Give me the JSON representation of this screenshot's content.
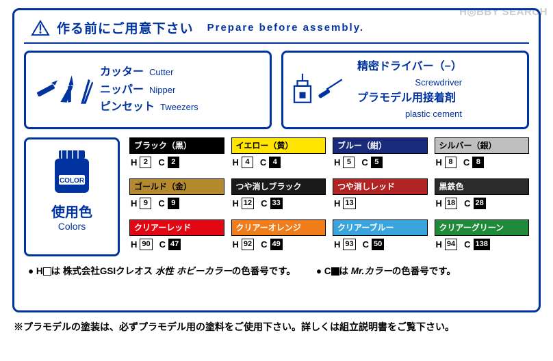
{
  "header": {
    "jp": "作る前にご用意下さい",
    "en": "Prepare before assembly."
  },
  "tools": {
    "left": [
      {
        "jp": "カッター",
        "en": "Cutter"
      },
      {
        "jp": "ニッパー",
        "en": "Nipper"
      },
      {
        "jp": "ピンセット",
        "en": "Tweezers"
      }
    ],
    "right": [
      {
        "jp": "精密ドライバー（−）",
        "en": "Screwdriver"
      },
      {
        "jp": "プラモデル用接着剤",
        "en": "plastic cement"
      }
    ]
  },
  "colors_label": {
    "jp": "使用色",
    "en": "Colors",
    "jar_label": "COLOR"
  },
  "colors": [
    {
      "name": "ブラック（黒）",
      "bg": "#000000",
      "text": "light",
      "h": "2",
      "c": "2"
    },
    {
      "name": "イエロー（黄）",
      "bg": "#ffe500",
      "text": "dark",
      "h": "4",
      "c": "4"
    },
    {
      "name": "ブルー（紺）",
      "bg": "#1a2a7a",
      "text": "light",
      "h": "5",
      "c": "5"
    },
    {
      "name": "シルバー（銀）",
      "bg": "#bfbfbf",
      "text": "dark",
      "h": "8",
      "c": "8"
    },
    {
      "name": "ゴールド（金）",
      "bg": "#b58a2e",
      "text": "dark",
      "h": "9",
      "c": "9"
    },
    {
      "name": "つや消しブラック",
      "bg": "#1a1a1a",
      "text": "light",
      "h": "12",
      "c": "33"
    },
    {
      "name": "つや消しレッド",
      "bg": "#b22424",
      "text": "light",
      "h": "13",
      "c": ""
    },
    {
      "name": "黒鉄色",
      "bg": "#2b2b2b",
      "text": "light",
      "h": "18",
      "c": "28"
    },
    {
      "name": "クリアーレッド",
      "bg": "#e30613",
      "text": "light",
      "h": "90",
      "c": "47"
    },
    {
      "name": "クリアーオレンジ",
      "bg": "#f07d1a",
      "text": "light",
      "h": "92",
      "c": "49"
    },
    {
      "name": "クリアーブルー",
      "bg": "#3aa5dc",
      "text": "light",
      "h": "93",
      "c": "50"
    },
    {
      "name": "クリアーグリーン",
      "bg": "#1e8a3a",
      "text": "light",
      "h": "94",
      "c": "138"
    }
  ],
  "legend": {
    "h_text_pre": "H",
    "h_text_post": "は 株式会社GSIクレオス",
    "h_brand": "水性 ホビーカラー",
    "h_text_end": "の色番号です。",
    "c_text_pre": "C",
    "c_text_post": "は",
    "c_brand": "Mr.カラー",
    "c_text_end": "の色番号です。"
  },
  "bottom_note": "※プラモデルの塗装は、必ずプラモデル用の塗料をご使用下さい。詳しくは組立説明書をご覧下さい。",
  "watermark": "H◎BBY SEARCH",
  "theme": {
    "ui_blue": "#0033a0"
  }
}
